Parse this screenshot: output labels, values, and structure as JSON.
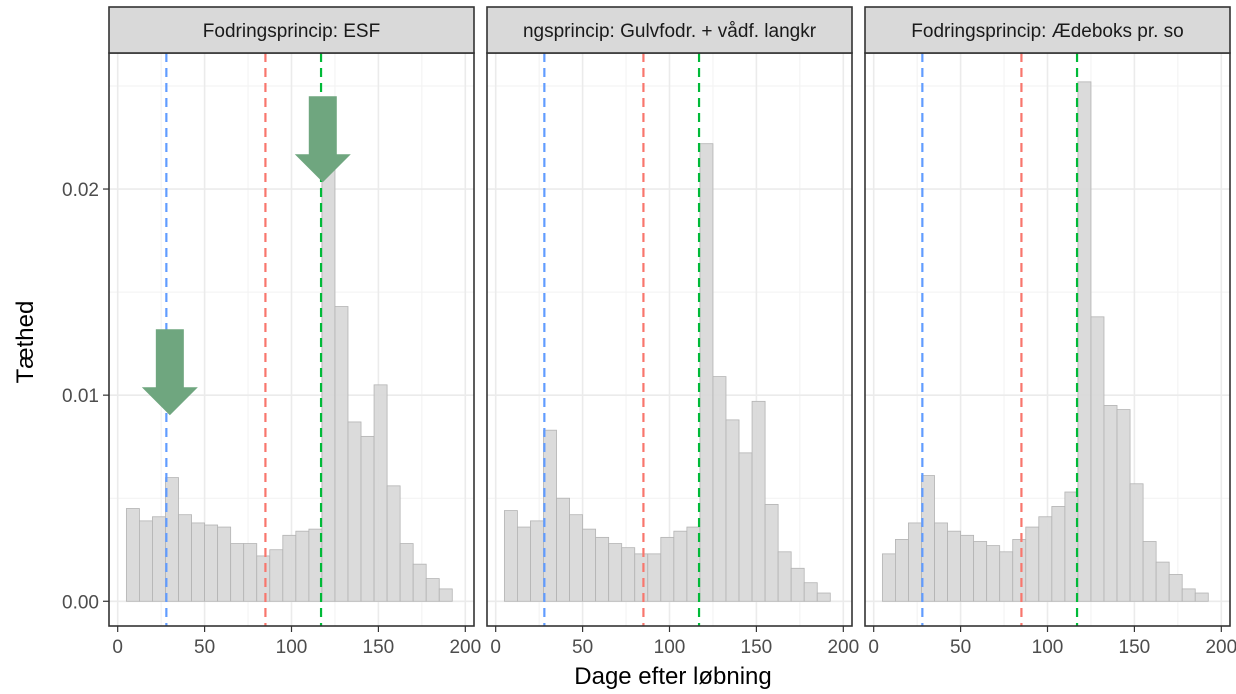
{
  "chart_data": {
    "type": "bar",
    "subtype": "faceted histogram with vertical reference lines",
    "xlabel": "Dage efter løbning",
    "ylabel": "Tæthed",
    "xlim": [
      -5,
      205
    ],
    "ylim": [
      -0.0012,
      0.0266
    ],
    "x_ticks": [
      0,
      50,
      100,
      150,
      200
    ],
    "x_tick_labels": [
      "0",
      "50",
      "100",
      "150",
      "200"
    ],
    "y_ticks": [
      0.0,
      0.01,
      0.02
    ],
    "y_tick_labels": [
      "0.00",
      "0.01",
      "0.02"
    ],
    "grid": true,
    "bin_width": 7.5,
    "bin_starts": [
      5,
      12.5,
      20,
      27.5,
      35,
      42.5,
      50,
      57.5,
      65,
      72.5,
      80,
      87.5,
      95,
      102.5,
      110,
      117.5,
      125,
      132.5,
      140,
      147.5,
      155,
      162.5,
      170,
      177.5,
      185
    ],
    "colors": {
      "bar_fill": "#d9d9d9",
      "bar_edge": "#b3b3b3",
      "strip_bg": "#d9d9d9",
      "arrow": "#6fa67f"
    },
    "panels": [
      {
        "strip_label": "Fodringsprincip: ESF",
        "values": [
          0.0045,
          0.0039,
          0.0041,
          0.006,
          0.0042,
          0.0038,
          0.0037,
          0.0036,
          0.0028,
          0.0028,
          0.0022,
          0.0025,
          0.0032,
          0.0034,
          0.0035,
          0.0212,
          0.0143,
          0.0087,
          0.008,
          0.0105,
          0.0056,
          0.0028,
          0.0018,
          0.0011,
          0.0006
        ],
        "vlines": [
          {
            "x": 28,
            "color": "#619cff"
          },
          {
            "x": 85,
            "color": "#f8766d"
          },
          {
            "x": 117,
            "color": "#00ba38"
          }
        ],
        "arrows": [
          {
            "x": 30,
            "y": 0.0132
          },
          {
            "x": 118,
            "y": 0.0245
          }
        ]
      },
      {
        "strip_label": "ngsprincip: Gulvfodr. + vådf. langkr",
        "values": [
          0.0044,
          0.0036,
          0.0039,
          0.0083,
          0.005,
          0.0042,
          0.0035,
          0.0031,
          0.0028,
          0.0026,
          0.0023,
          0.0023,
          0.0031,
          0.0034,
          0.0036,
          0.0222,
          0.0109,
          0.0088,
          0.0072,
          0.0097,
          0.0047,
          0.0024,
          0.0016,
          0.0009,
          0.0004
        ],
        "vlines": [
          {
            "x": 28,
            "color": "#619cff"
          },
          {
            "x": 85,
            "color": "#f8766d"
          },
          {
            "x": 117,
            "color": "#00ba38"
          }
        ],
        "arrows": []
      },
      {
        "strip_label": "Fodringsprincip: Ædeboks pr. so",
        "values": [
          0.0023,
          0.003,
          0.0038,
          0.0061,
          0.0038,
          0.0034,
          0.0032,
          0.0029,
          0.0027,
          0.0024,
          0.003,
          0.0036,
          0.0041,
          0.0046,
          0.0053,
          0.0252,
          0.0138,
          0.0095,
          0.0093,
          0.0057,
          0.0029,
          0.0019,
          0.0013,
          0.0006,
          0.0004
        ],
        "vlines": [
          {
            "x": 28,
            "color": "#619cff"
          },
          {
            "x": 85,
            "color": "#f8766d"
          },
          {
            "x": 117,
            "color": "#00ba38"
          }
        ],
        "arrows": []
      }
    ]
  }
}
